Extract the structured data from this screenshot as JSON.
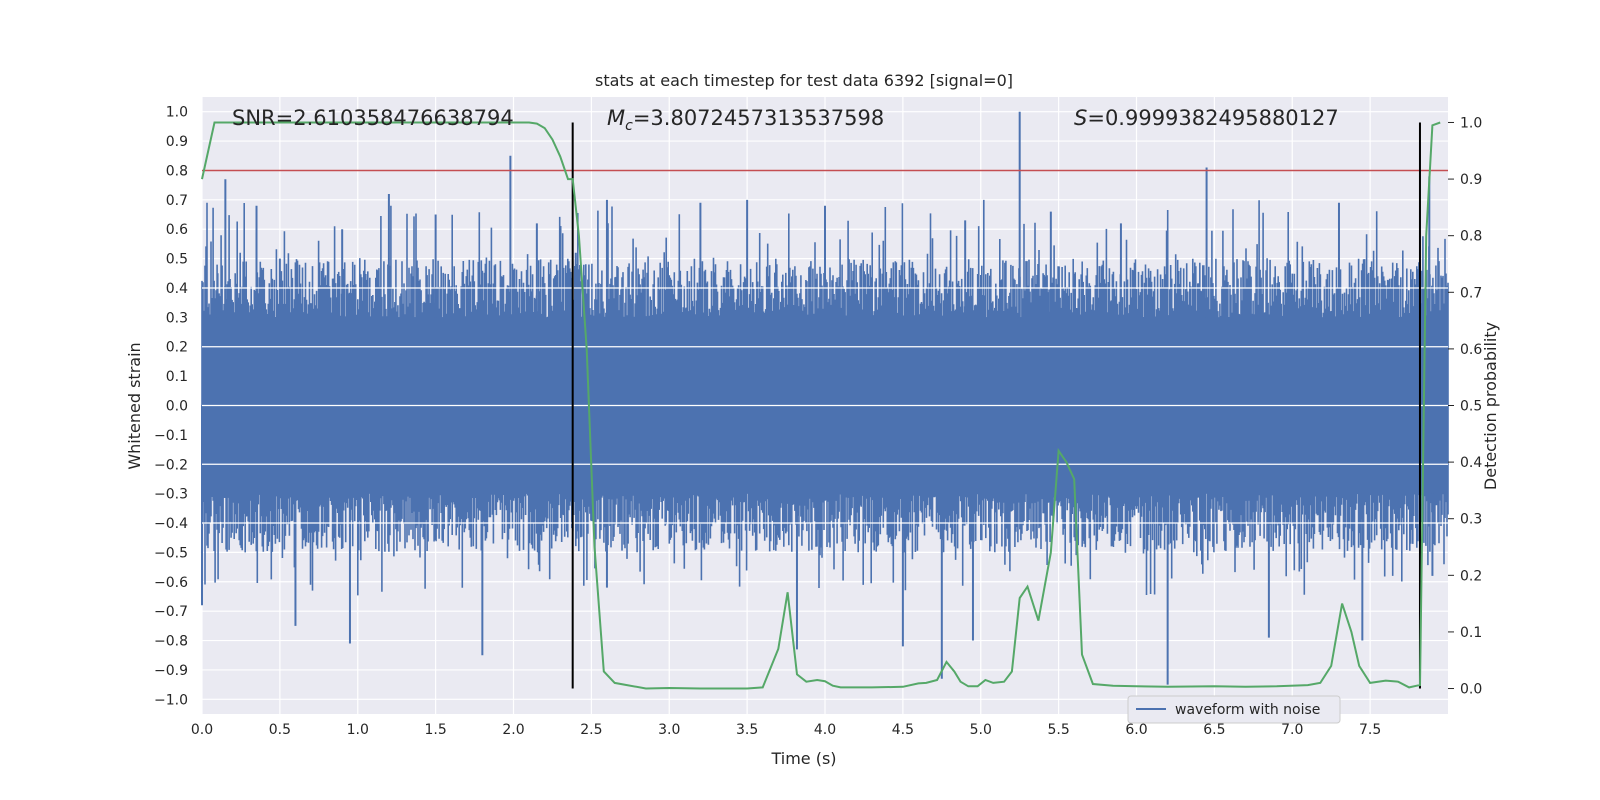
{
  "chart_data": {
    "type": "line",
    "title": "stats at each timestep for test data 6392 [signal=0]",
    "xlabel": "Time (s)",
    "ylabel": "Whitened strain",
    "y2label": "Detection probability",
    "xlim": [
      0,
      8
    ],
    "ylim": [
      -1.05,
      1.05
    ],
    "y2lim": [
      -0.045,
      1.045
    ],
    "xticks": [
      "0.0",
      "0.5",
      "1.0",
      "1.5",
      "2.0",
      "2.5",
      "3.0",
      "3.5",
      "4.0",
      "4.5",
      "5.0",
      "5.5",
      "6.0",
      "6.5",
      "7.0",
      "7.5"
    ],
    "yticks": [
      "1.0",
      "0.9",
      "0.8",
      "0.7",
      "0.6",
      "0.5",
      "0.4",
      "0.3",
      "0.2",
      "0.1",
      "0.0",
      "-0.1",
      "-0.2",
      "-0.3",
      "-0.4",
      "-0.5",
      "-0.6",
      "-0.7",
      "-0.8",
      "-0.9",
      "-1.0"
    ],
    "y2ticks": [
      "1.0",
      "0.9",
      "0.8",
      "0.7",
      "0.6",
      "0.5",
      "0.4",
      "0.3",
      "0.2",
      "0.1",
      "0.0"
    ],
    "grid": true,
    "annotations": {
      "snr": "SNR=2.610358476638794",
      "mc_symbol": "M",
      "mc_sub": "c",
      "mc_value": "=3.8072457313537598",
      "s_symbol": "S",
      "s_value": "=0.9999382495880127"
    },
    "threshold": 0.8,
    "markers": [
      2.38,
      7.82
    ],
    "series": [
      {
        "name": "waveform with noise",
        "color": "#4c72b0",
        "axis": "left",
        "peaks_upper": [
          [
            0.1,
            0.45
          ],
          [
            0.15,
            0.77
          ],
          [
            0.35,
            0.68
          ],
          [
            0.5,
            0.5
          ],
          [
            0.9,
            0.6
          ],
          [
            1.2,
            0.72
          ],
          [
            1.5,
            0.65
          ],
          [
            1.98,
            0.85
          ],
          [
            2.15,
            0.62
          ],
          [
            2.4,
            0.52
          ],
          [
            2.6,
            0.7
          ],
          [
            3.2,
            0.69
          ],
          [
            3.5,
            0.7
          ],
          [
            4.0,
            0.68
          ],
          [
            4.9,
            0.63
          ],
          [
            5.25,
            1.0
          ],
          [
            5.45,
            0.66
          ],
          [
            5.9,
            0.62
          ],
          [
            6.45,
            0.81
          ],
          [
            7.3,
            0.69
          ],
          [
            7.88,
            0.78
          ]
        ],
        "peaks_lower": [
          [
            0.0,
            -0.68
          ],
          [
            0.6,
            -0.75
          ],
          [
            0.95,
            -0.81
          ],
          [
            1.8,
            -0.85
          ],
          [
            2.6,
            -0.62
          ],
          [
            3.82,
            -0.83
          ],
          [
            4.5,
            -0.82
          ],
          [
            4.75,
            -0.93
          ],
          [
            4.95,
            -0.8
          ],
          [
            6.2,
            -0.95
          ],
          [
            6.85,
            -0.79
          ],
          [
            7.45,
            -0.8
          ],
          [
            7.9,
            -0.58
          ]
        ]
      },
      {
        "name": "detection probability",
        "color": "#55a868",
        "axis": "right",
        "x": [
          0.0,
          0.08,
          0.15,
          0.5,
          1.0,
          1.5,
          2.0,
          2.1,
          2.15,
          2.2,
          2.25,
          2.3,
          2.35,
          2.38,
          2.42,
          2.47,
          2.52,
          2.58,
          2.65,
          2.85,
          3.0,
          3.2,
          3.5,
          3.6,
          3.7,
          3.76,
          3.82,
          3.88,
          3.95,
          4.0,
          4.05,
          4.1,
          4.3,
          4.5,
          4.6,
          4.65,
          4.72,
          4.78,
          4.83,
          4.87,
          4.92,
          4.98,
          5.03,
          5.08,
          5.15,
          5.2,
          5.25,
          5.3,
          5.37,
          5.45,
          5.5,
          5.55,
          5.6,
          5.65,
          5.72,
          5.85,
          6.0,
          6.2,
          6.5,
          6.7,
          6.9,
          7.1,
          7.18,
          7.25,
          7.32,
          7.38,
          7.43,
          7.5,
          7.6,
          7.68,
          7.75,
          7.8,
          7.82,
          7.86,
          7.9,
          7.95
        ],
        "y": [
          0.9,
          1.0,
          1.0,
          1.0,
          1.0,
          1.0,
          1.0,
          1.0,
          0.998,
          0.99,
          0.97,
          0.94,
          0.9,
          0.9,
          0.8,
          0.6,
          0.25,
          0.03,
          0.01,
          0.0,
          0.001,
          0.0,
          0.0,
          0.002,
          0.07,
          0.17,
          0.025,
          0.012,
          0.015,
          0.013,
          0.005,
          0.002,
          0.002,
          0.003,
          0.009,
          0.01,
          0.015,
          0.047,
          0.03,
          0.012,
          0.004,
          0.004,
          0.015,
          0.01,
          0.012,
          0.03,
          0.16,
          0.18,
          0.12,
          0.24,
          0.42,
          0.4,
          0.37,
          0.06,
          0.008,
          0.005,
          0.004,
          0.003,
          0.004,
          0.003,
          0.004,
          0.006,
          0.01,
          0.04,
          0.15,
          0.1,
          0.04,
          0.01,
          0.014,
          0.012,
          0.002,
          0.005,
          0.006,
          0.8,
          0.995,
          1.0
        ]
      }
    ],
    "legend": {
      "label": "waveform with noise",
      "placement": "lower-right"
    }
  }
}
